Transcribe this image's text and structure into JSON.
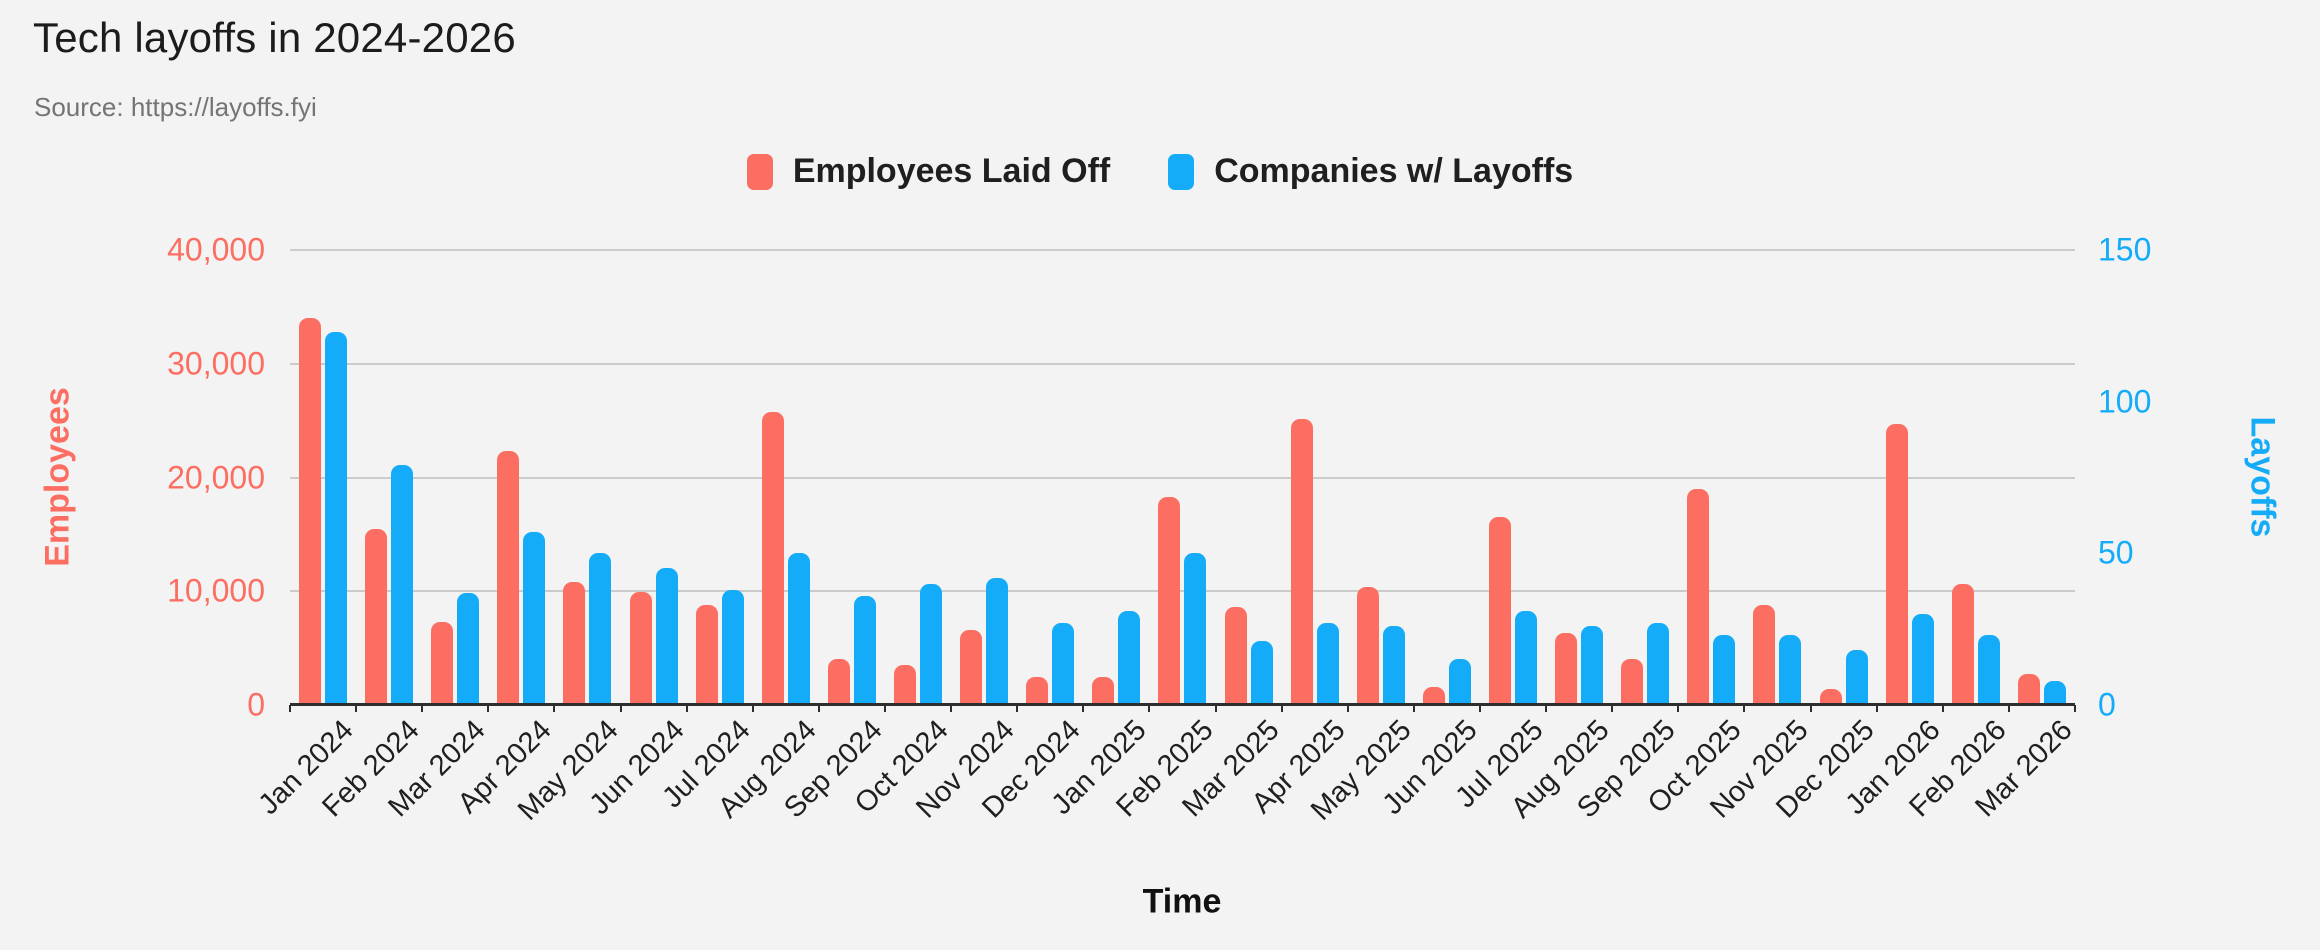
{
  "page": {
    "background": "#f3f3f3"
  },
  "header": {
    "title": "Tech layoffs in 2024-2026",
    "source": "Source: https://layoffs.fyi"
  },
  "legend": [
    {
      "label": "Employees Laid Off",
      "color": "#fc6e62"
    },
    {
      "label": "Companies w/ Layoffs",
      "color": "#14acf8"
    }
  ],
  "axes": {
    "left": {
      "title": "Employees",
      "color": "#fc6e62",
      "ticks": [
        {
          "label": "40,000",
          "value": 40000
        },
        {
          "label": "30,000",
          "value": 30000
        },
        {
          "label": "20,000",
          "value": 20000
        },
        {
          "label": "10,000",
          "value": 10000
        },
        {
          "label": "0",
          "value": 0
        }
      ],
      "max": 40000
    },
    "right": {
      "title": "Layoffs",
      "color": "#14acf8",
      "ticks": [
        {
          "label": "150",
          "value": 150
        },
        {
          "label": "100",
          "value": 100
        },
        {
          "label": "50",
          "value": 50
        },
        {
          "label": "0",
          "value": 0
        }
      ],
      "max": 150
    },
    "x": {
      "title": "Time"
    }
  },
  "chart_data": {
    "type": "bar",
    "title": "Tech layoffs in 2024-2026",
    "subtitle": "Source: https://layoffs.fyi",
    "categories": [
      "Jan 2024",
      "Feb 2024",
      "Mar 2024",
      "Apr 2024",
      "May 2024",
      "Jun 2024",
      "Jul 2024",
      "Aug 2024",
      "Sep 2024",
      "Oct 2024",
      "Nov 2024",
      "Dec 2024",
      "Jan 2025",
      "Feb 2025",
      "Mar 2025",
      "Apr 2025",
      "May 2025",
      "Jun 2025",
      "Jul 2025",
      "Aug 2025",
      "Sep 2025",
      "Oct 2025",
      "Nov 2025",
      "Dec 2025",
      "Jan 2026",
      "Feb 2026",
      "Mar 2026"
    ],
    "series": [
      {
        "name": "Employees Laid Off",
        "axis": "left",
        "color": "#fc6e62",
        "values": [
          34000,
          15500,
          7300,
          22300,
          10800,
          9900,
          8800,
          25800,
          4000,
          3500,
          6600,
          2500,
          2500,
          18300,
          8600,
          25100,
          10400,
          1600,
          16500,
          6300,
          4000,
          19000,
          8800,
          1400,
          24700,
          10600,
          2700
        ]
      },
      {
        "name": "Companies w/ Layoffs",
        "axis": "right",
        "color": "#14acf8",
        "values": [
          123,
          79,
          37,
          57,
          50,
          45,
          38,
          50,
          36,
          40,
          42,
          27,
          31,
          50,
          21,
          27,
          26,
          15,
          31,
          26,
          27,
          23,
          23,
          18,
          30,
          23,
          8
        ]
      }
    ],
    "xlabel": "Time",
    "ylabel_left": "Employees",
    "ylabel_right": "Layoffs",
    "ylim_left": [
      0,
      40000
    ],
    "ylim_right": [
      0,
      150
    ],
    "grid": true,
    "legend_position": "top",
    "gridline_color": "#cbcbcb",
    "axis_line_color": "#2e2e2e"
  }
}
